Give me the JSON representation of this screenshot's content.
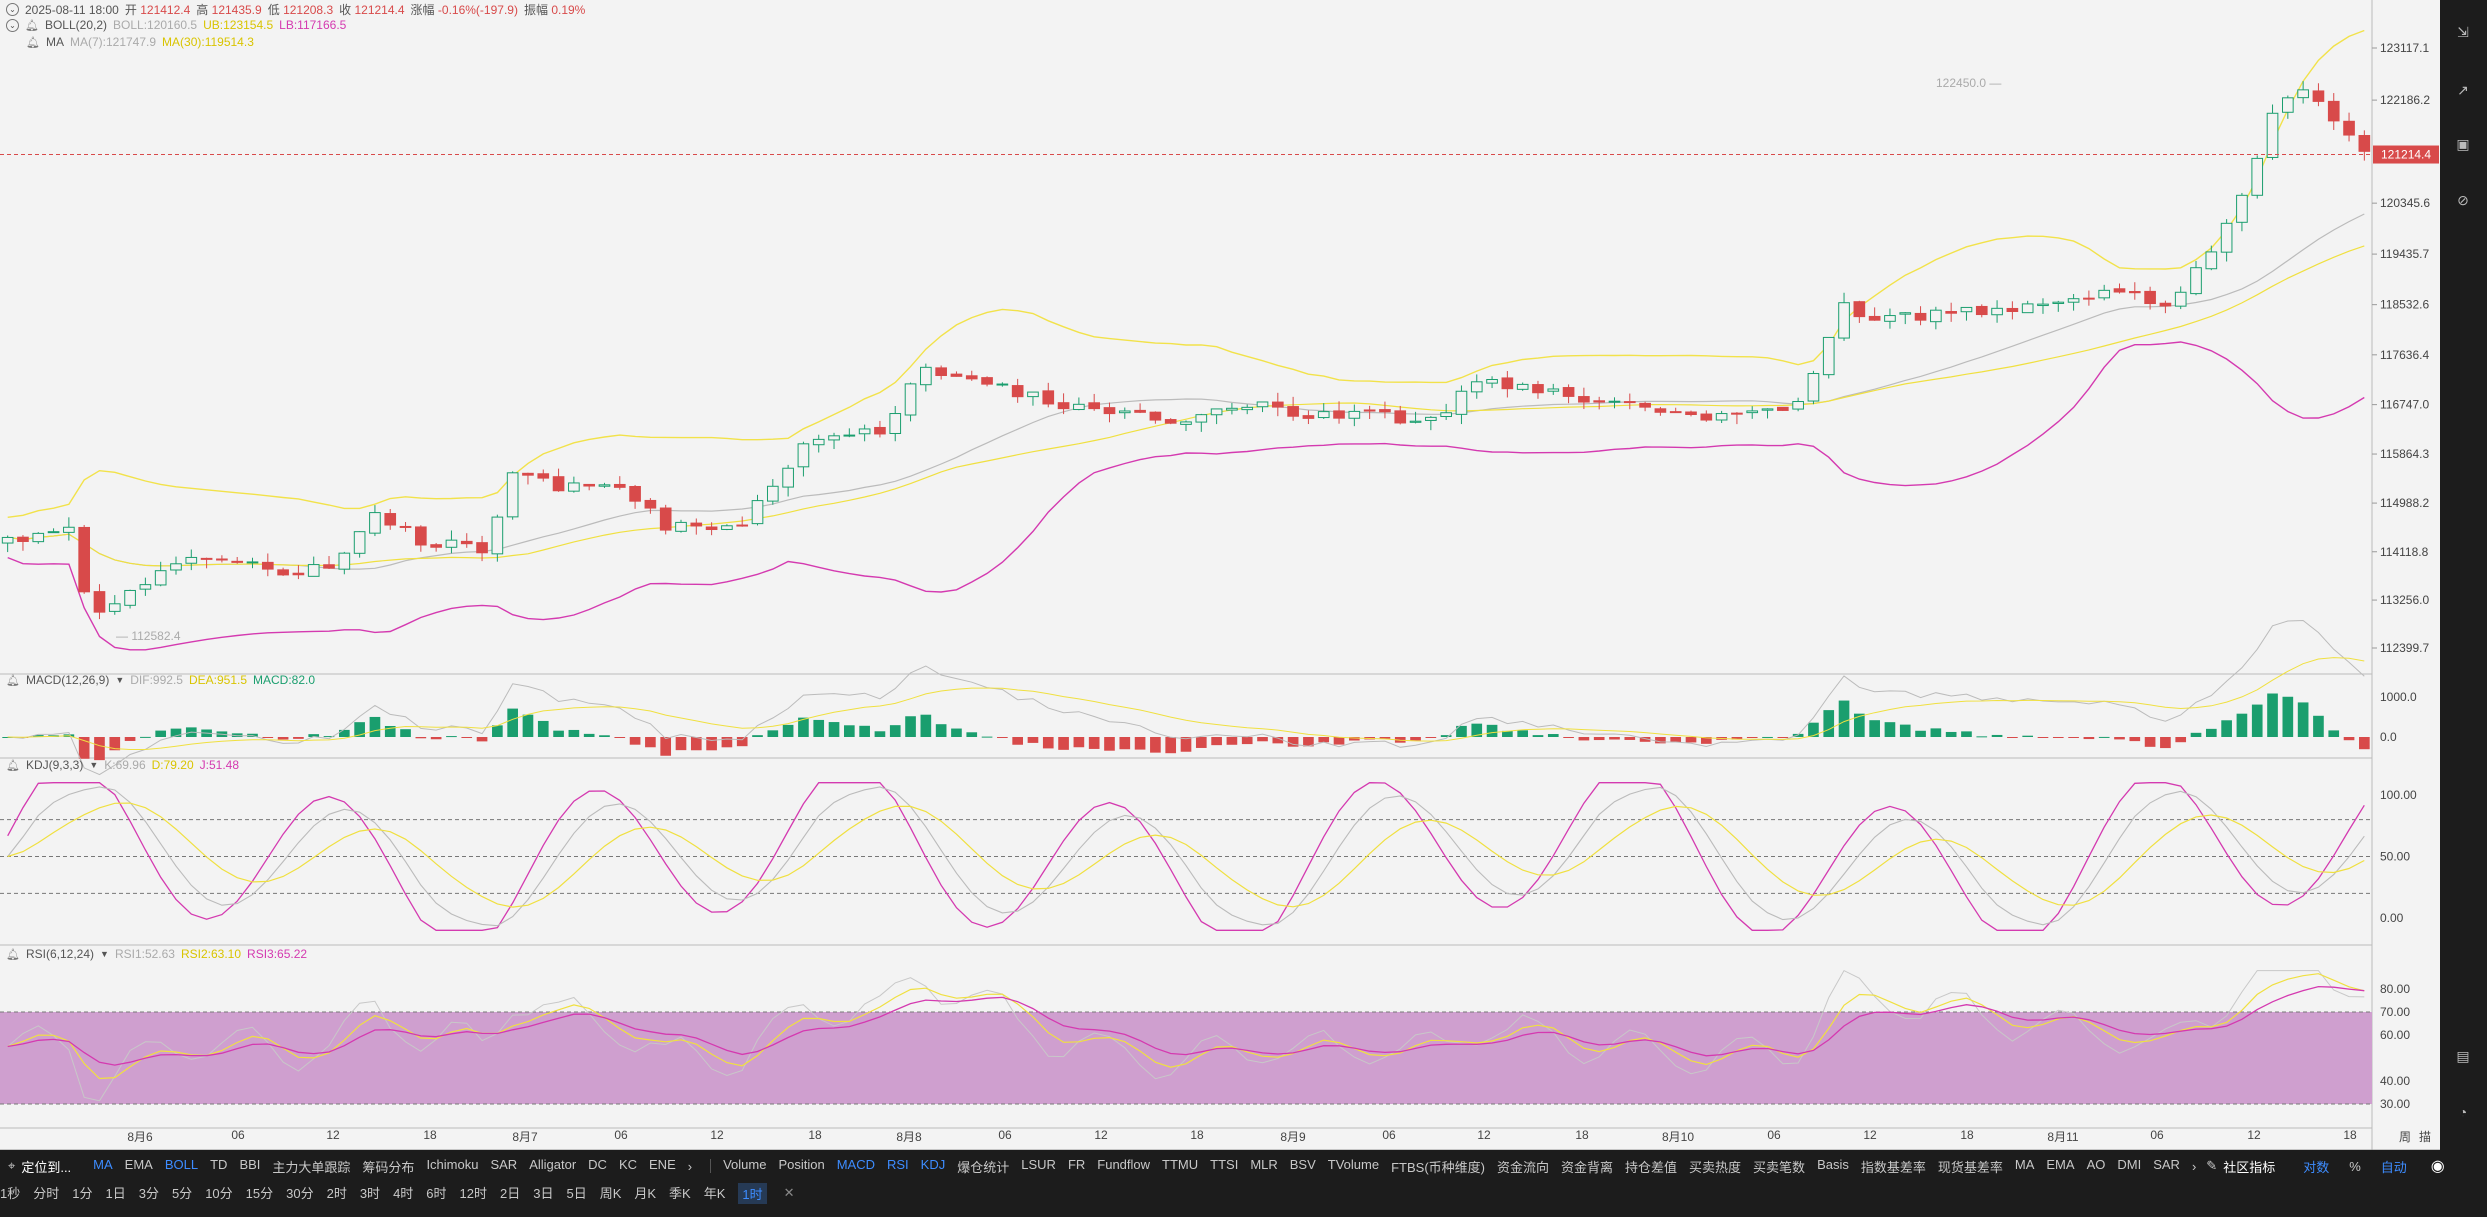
{
  "header": {
    "ohlc": {
      "datetime": "2025-08-11 18:00",
      "open_label": "开",
      "open": "121412.4",
      "high_label": "高",
      "high": "121435.9",
      "low_label": "低",
      "low": "121208.3",
      "close_label": "收",
      "close": "121214.4",
      "change_label": "涨幅",
      "change": "-0.16%(-197.9)",
      "amp_label": "振幅",
      "amp": "0.19%"
    },
    "boll": {
      "name": "BOLL(20,2)",
      "mid": "BOLL:120160.5",
      "ub": "UB:123154.5",
      "lb": "LB:117166.5"
    },
    "ma": {
      "name": "MA",
      "ma7": "MA(7):121747.9",
      "ma30": "MA(30):119514.3"
    }
  },
  "main_axis": [
    "123117.1",
    "122186.2",
    "121214.4",
    "120345.6",
    "119435.7",
    "118532.6",
    "117636.4",
    "116747.0",
    "115864.3",
    "114988.2",
    "114118.8",
    "113256.0",
    "112399.7"
  ],
  "price_marker": {
    "value": "121214.4",
    "color": "#d84a4a"
  },
  "high_label": "122450.0",
  "low_label": "112582.4",
  "macd": {
    "name": "MACD(12,26,9)",
    "dif": "DIF:992.5",
    "dea": "DEA:951.5",
    "macd": "MACD:82.0",
    "axis": [
      "1000.0",
      "0.0"
    ]
  },
  "kdj": {
    "name": "KDJ(9,3,3)",
    "k": "K:69.96",
    "d": "D:79.20",
    "j": "J:51.48",
    "axis": [
      "100.00",
      "50.00",
      "0.00"
    ]
  },
  "rsi": {
    "name": "RSI(6,12,24)",
    "rsi1": "RSI1:52.63",
    "rsi2": "RSI2:63.10",
    "rsi3": "RSI3:65.22",
    "axis": [
      "80.00",
      "70.00",
      "60.00",
      "40.00",
      "30.00"
    ]
  },
  "time_axis": [
    "8月6",
    "06",
    "12",
    "18",
    "8月7",
    "06",
    "12",
    "18",
    "8月8",
    "06",
    "12",
    "18",
    "8月9",
    "06",
    "12",
    "18",
    "8月10",
    "06",
    "12",
    "18",
    "8月11",
    "06",
    "12",
    "18"
  ],
  "time_axis_right": "周",
  "time_axis_right2": "描",
  "colors": {
    "up": "#1a9e6e",
    "down": "#d84a4a",
    "boll_band": "#f2e24a",
    "boll_lb": "#d43ab0",
    "ma": "#bbbbbb",
    "rsi_fill": "#cf9fcf"
  },
  "bottom_bar": {
    "row1": {
      "left_label": "定位到...",
      "main_indicators": [
        "MA",
        "EMA",
        "BOLL",
        "TD",
        "BBI",
        "主力大单跟踪",
        "筹码分布",
        "Ichimoku",
        "SAR",
        "Alligator",
        "DC",
        "KC",
        "ENE"
      ],
      "sub_indicators": [
        "Volume",
        "Position",
        "MACD",
        "RSI",
        "KDJ",
        "爆仓统计",
        "LSUR",
        "FR",
        "Fundflow",
        "TTMU",
        "TTSI",
        "MLR",
        "BSV",
        "TVolume",
        "FTBS(币种维度)",
        "资金流向",
        "资金背离",
        "持仓差值",
        "买卖热度",
        "买卖笔数",
        "Basis",
        "指数基差率",
        "现货基差率",
        "MA",
        "EMA",
        "AO",
        "DMI",
        "SAR"
      ],
      "community": "社区指标",
      "right_items": [
        "对数",
        "%",
        "自动"
      ]
    },
    "row2": {
      "timeframes": [
        "1秒",
        "分时",
        "1分",
        "1日",
        "3分",
        "5分",
        "10分",
        "15分",
        "30分",
        "2时",
        "3时",
        "4时",
        "6时",
        "12时",
        "2日",
        "3日",
        "5日",
        "周K",
        "月K",
        "季K",
        "年K",
        "1时"
      ]
    }
  }
}
